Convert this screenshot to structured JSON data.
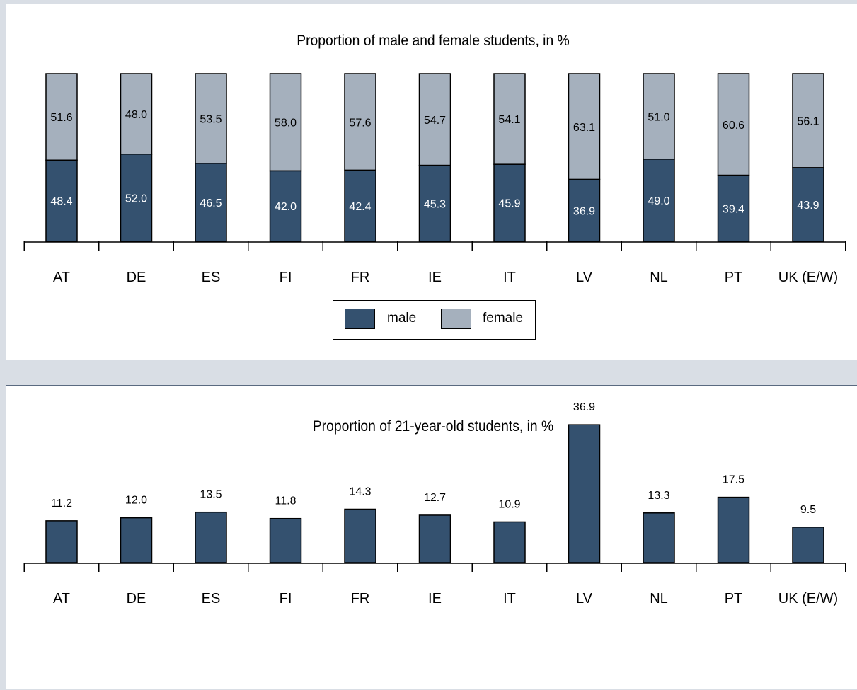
{
  "colors": {
    "male": "#34516f",
    "female": "#a5b0bd"
  },
  "legend": {
    "male_label": "male",
    "female_label": "female"
  },
  "chart_data": [
    {
      "type": "bar",
      "stacked": true,
      "title": "Proportion of male and female students, in %",
      "categories": [
        "AT",
        "DE",
        "ES",
        "FI",
        "FR",
        "IE",
        "IT",
        "LV",
        "NL",
        "PT",
        "UK (E/W)"
      ],
      "series": [
        {
          "name": "male",
          "values": [
            48.4,
            52.0,
            46.5,
            42.0,
            42.4,
            45.3,
            45.9,
            36.9,
            49.0,
            39.4,
            43.9
          ]
        },
        {
          "name": "female",
          "values": [
            51.6,
            48.0,
            53.5,
            58.0,
            57.6,
            54.7,
            54.1,
            63.1,
            51.0,
            60.6,
            56.1
          ]
        }
      ],
      "ylim": [
        0,
        100
      ],
      "grid": false,
      "legend_position": "bottom-center"
    },
    {
      "type": "bar",
      "title": "Proportion of 21-year-old students, in %",
      "categories": [
        "AT",
        "DE",
        "ES",
        "FI",
        "FR",
        "IE",
        "IT",
        "LV",
        "NL",
        "PT",
        "UK (E/W)"
      ],
      "values": [
        11.2,
        12.0,
        13.5,
        11.8,
        14.3,
        12.7,
        10.9,
        36.9,
        13.3,
        17.5,
        9.5
      ],
      "grid": false
    }
  ]
}
